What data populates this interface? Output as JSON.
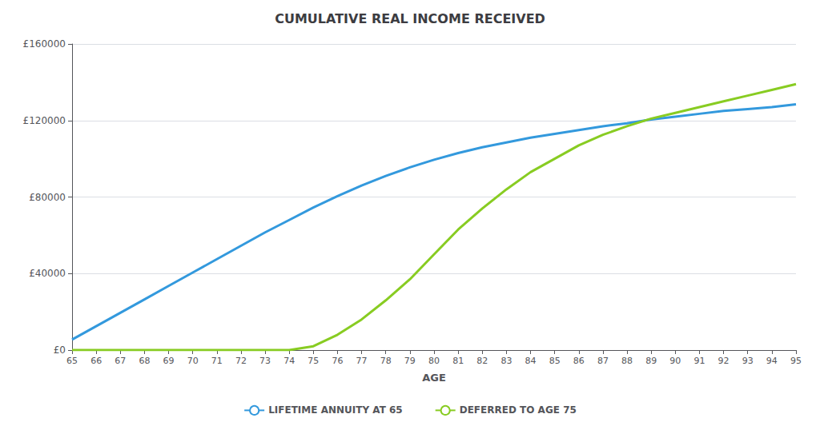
{
  "chart_data": {
    "type": "line",
    "title": "CUMULATIVE REAL INCOME RECEIVED",
    "xlabel": "AGE",
    "x": [
      65,
      66,
      67,
      68,
      69,
      70,
      71,
      72,
      73,
      74,
      75,
      76,
      77,
      78,
      79,
      80,
      81,
      82,
      83,
      84,
      85,
      86,
      87,
      88,
      89,
      90,
      91,
      92,
      93,
      94,
      95
    ],
    "series": [
      {
        "name": "LIFETIME ANNUITY AT 65",
        "color": "#3399dd",
        "values": [
          5500,
          12500,
          19500,
          26500,
          33500,
          40500,
          47500,
          54500,
          61500,
          68000,
          74500,
          80500,
          86000,
          91000,
          95500,
          99500,
          103000,
          106000,
          108500,
          111000,
          113000,
          115000,
          117000,
          118500,
          120500,
          122000,
          123500,
          125000,
          126000,
          127000,
          128500
        ]
      },
      {
        "name": "DEFERRED TO AGE 75",
        "color": "#88cc22",
        "values": [
          0,
          0,
          0,
          0,
          0,
          0,
          0,
          0,
          0,
          0,
          2000,
          8000,
          16000,
          26000,
          37000,
          50000,
          63000,
          74000,
          84000,
          93000,
          100000,
          107000,
          112500,
          117000,
          121000,
          124000,
          127000,
          130000,
          133000,
          136000,
          139000
        ]
      }
    ],
    "xlim": [
      65,
      95
    ],
    "xticks": [
      65,
      66,
      67,
      68,
      69,
      70,
      71,
      72,
      73,
      74,
      75,
      76,
      77,
      78,
      79,
      80,
      81,
      82,
      83,
      84,
      85,
      86,
      87,
      88,
      89,
      90,
      91,
      92,
      93,
      94,
      95
    ],
    "ylim": [
      0,
      160000
    ],
    "yticks": [
      {
        "value": 0,
        "label": "£0"
      },
      {
        "value": 40000,
        "label": "£40000"
      },
      {
        "value": 80000,
        "label": "£80000"
      },
      {
        "value": 120000,
        "label": "£120000"
      },
      {
        "value": 160000,
        "label": "£160000"
      }
    ],
    "grid": true,
    "legend": "bottom"
  }
}
